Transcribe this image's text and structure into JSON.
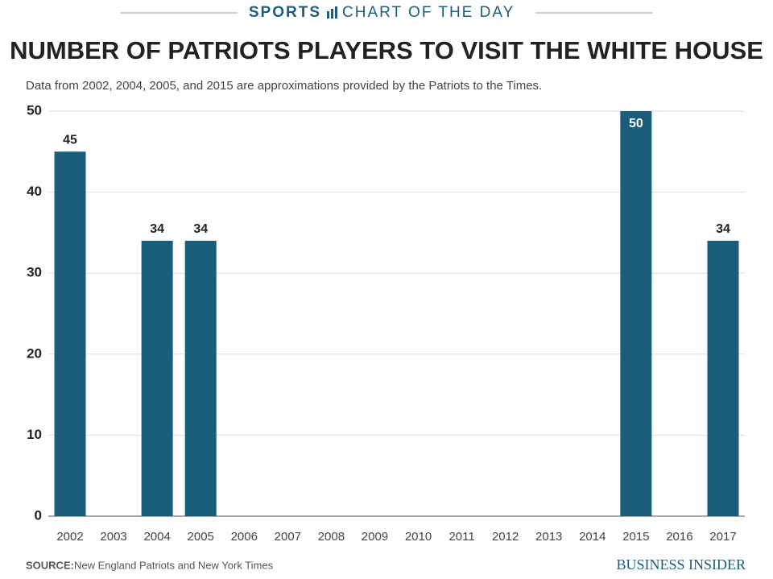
{
  "header": {
    "section": "SPORTS",
    "label": "CHART OF THE DAY"
  },
  "chart_data": {
    "type": "bar",
    "title": "NUMBER OF PATRIOTS PLAYERS TO VISIT THE WHITE HOUSE",
    "subtitle": "Data from 2002, 2004, 2005, and 2015 are approximations provided by the Patriots to the Times.",
    "categories": [
      "2002",
      "2003",
      "2004",
      "2005",
      "2006",
      "2007",
      "2008",
      "2009",
      "2010",
      "2011",
      "2012",
      "2013",
      "2014",
      "2015",
      "2016",
      "2017"
    ],
    "values": [
      45,
      null,
      34,
      34,
      null,
      null,
      null,
      null,
      null,
      null,
      null,
      null,
      null,
      50,
      null,
      34
    ],
    "color": "#1b5e7b",
    "ylim": [
      0,
      50
    ],
    "yticks": [
      0,
      10,
      20,
      30,
      40,
      50
    ],
    "grid": true
  },
  "footer": {
    "source_label": "SOURCE:",
    "source": "New England Patriots and New York Times",
    "brand": "BUSINESS INSIDER"
  }
}
